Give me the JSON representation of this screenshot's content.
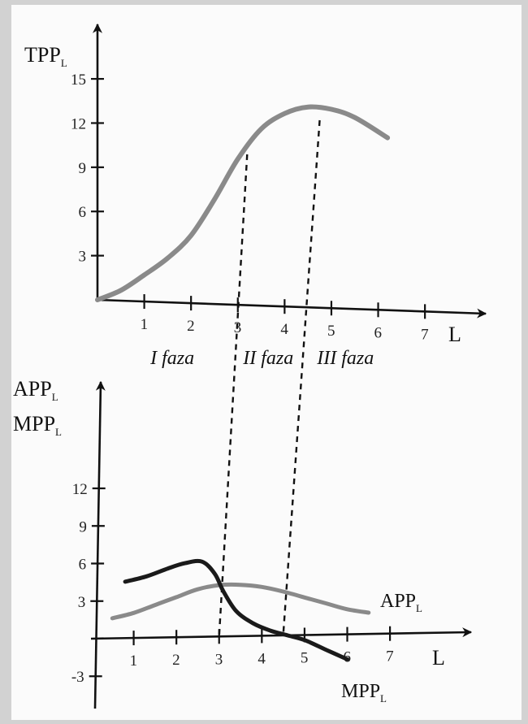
{
  "chart_data": [
    {
      "type": "line",
      "ylabel": "TPP",
      "ylabel_sub": "L",
      "xlabel": "L",
      "x_ticks": [
        1,
        2,
        3,
        4,
        5,
        6,
        7
      ],
      "y_ticks": [
        3,
        6,
        9,
        12,
        15
      ],
      "xlim": [
        0,
        8.3
      ],
      "ylim": [
        0,
        18.7
      ],
      "series": [
        {
          "name": "",
          "color": "#8a8a8a",
          "x": [
            0,
            0.5,
            1,
            1.5,
            2,
            2.5,
            3,
            3.5,
            4,
            4.5,
            5,
            5.5,
            6.2
          ],
          "y": [
            0,
            0.7,
            1.8,
            3.0,
            4.6,
            7.1,
            9.9,
            12.0,
            13.1,
            13.6,
            13.5,
            13.0,
            11.7
          ]
        }
      ],
      "phases": [
        {
          "label": "I faza",
          "x_center": 1.6
        },
        {
          "label": "II faza",
          "x_center": 3.65
        },
        {
          "label": "III faza",
          "x_center": 5.3
        }
      ],
      "dashed_lines_at_x": [
        3.2,
        4.75
      ]
    },
    {
      "type": "line",
      "ylabel": [
        "APP",
        "MPP"
      ],
      "ylabel_sub": "L",
      "xlabel": "L",
      "x_ticks": [
        1,
        2,
        3,
        4,
        5,
        6,
        7
      ],
      "y_ticks": [
        -3,
        3,
        6,
        9,
        12
      ],
      "xlim": [
        0,
        8.9
      ],
      "ylim": [
        -5.5,
        20.5
      ],
      "series": [
        {
          "name": "APP",
          "name_sub": "L",
          "color": "#8a8a8a",
          "x": [
            0.5,
            1,
            1.5,
            2,
            2.5,
            3,
            3.5,
            4,
            4.5,
            5,
            5.5,
            6,
            6.5
          ],
          "y": [
            1.6,
            2.0,
            2.6,
            3.2,
            3.8,
            4.1,
            4.1,
            3.9,
            3.5,
            3.0,
            2.5,
            2.0,
            1.7
          ]
        },
        {
          "name": "MPP",
          "name_sub": "L",
          "color": "#1a1a1a",
          "x": [
            0.8,
            1.3,
            1.8,
            2.2,
            2.6,
            2.9,
            3.1,
            3.4,
            3.8,
            4.2,
            4.6,
            5.0,
            5.5,
            6.0
          ],
          "y": [
            4.5,
            4.9,
            5.5,
            5.9,
            6.0,
            5.0,
            3.6,
            2.0,
            1.0,
            0.4,
            0.0,
            -0.4,
            -1.2,
            -2.0
          ]
        }
      ],
      "dashed_lines_at_x": [
        3.0,
        4.5
      ]
    }
  ]
}
